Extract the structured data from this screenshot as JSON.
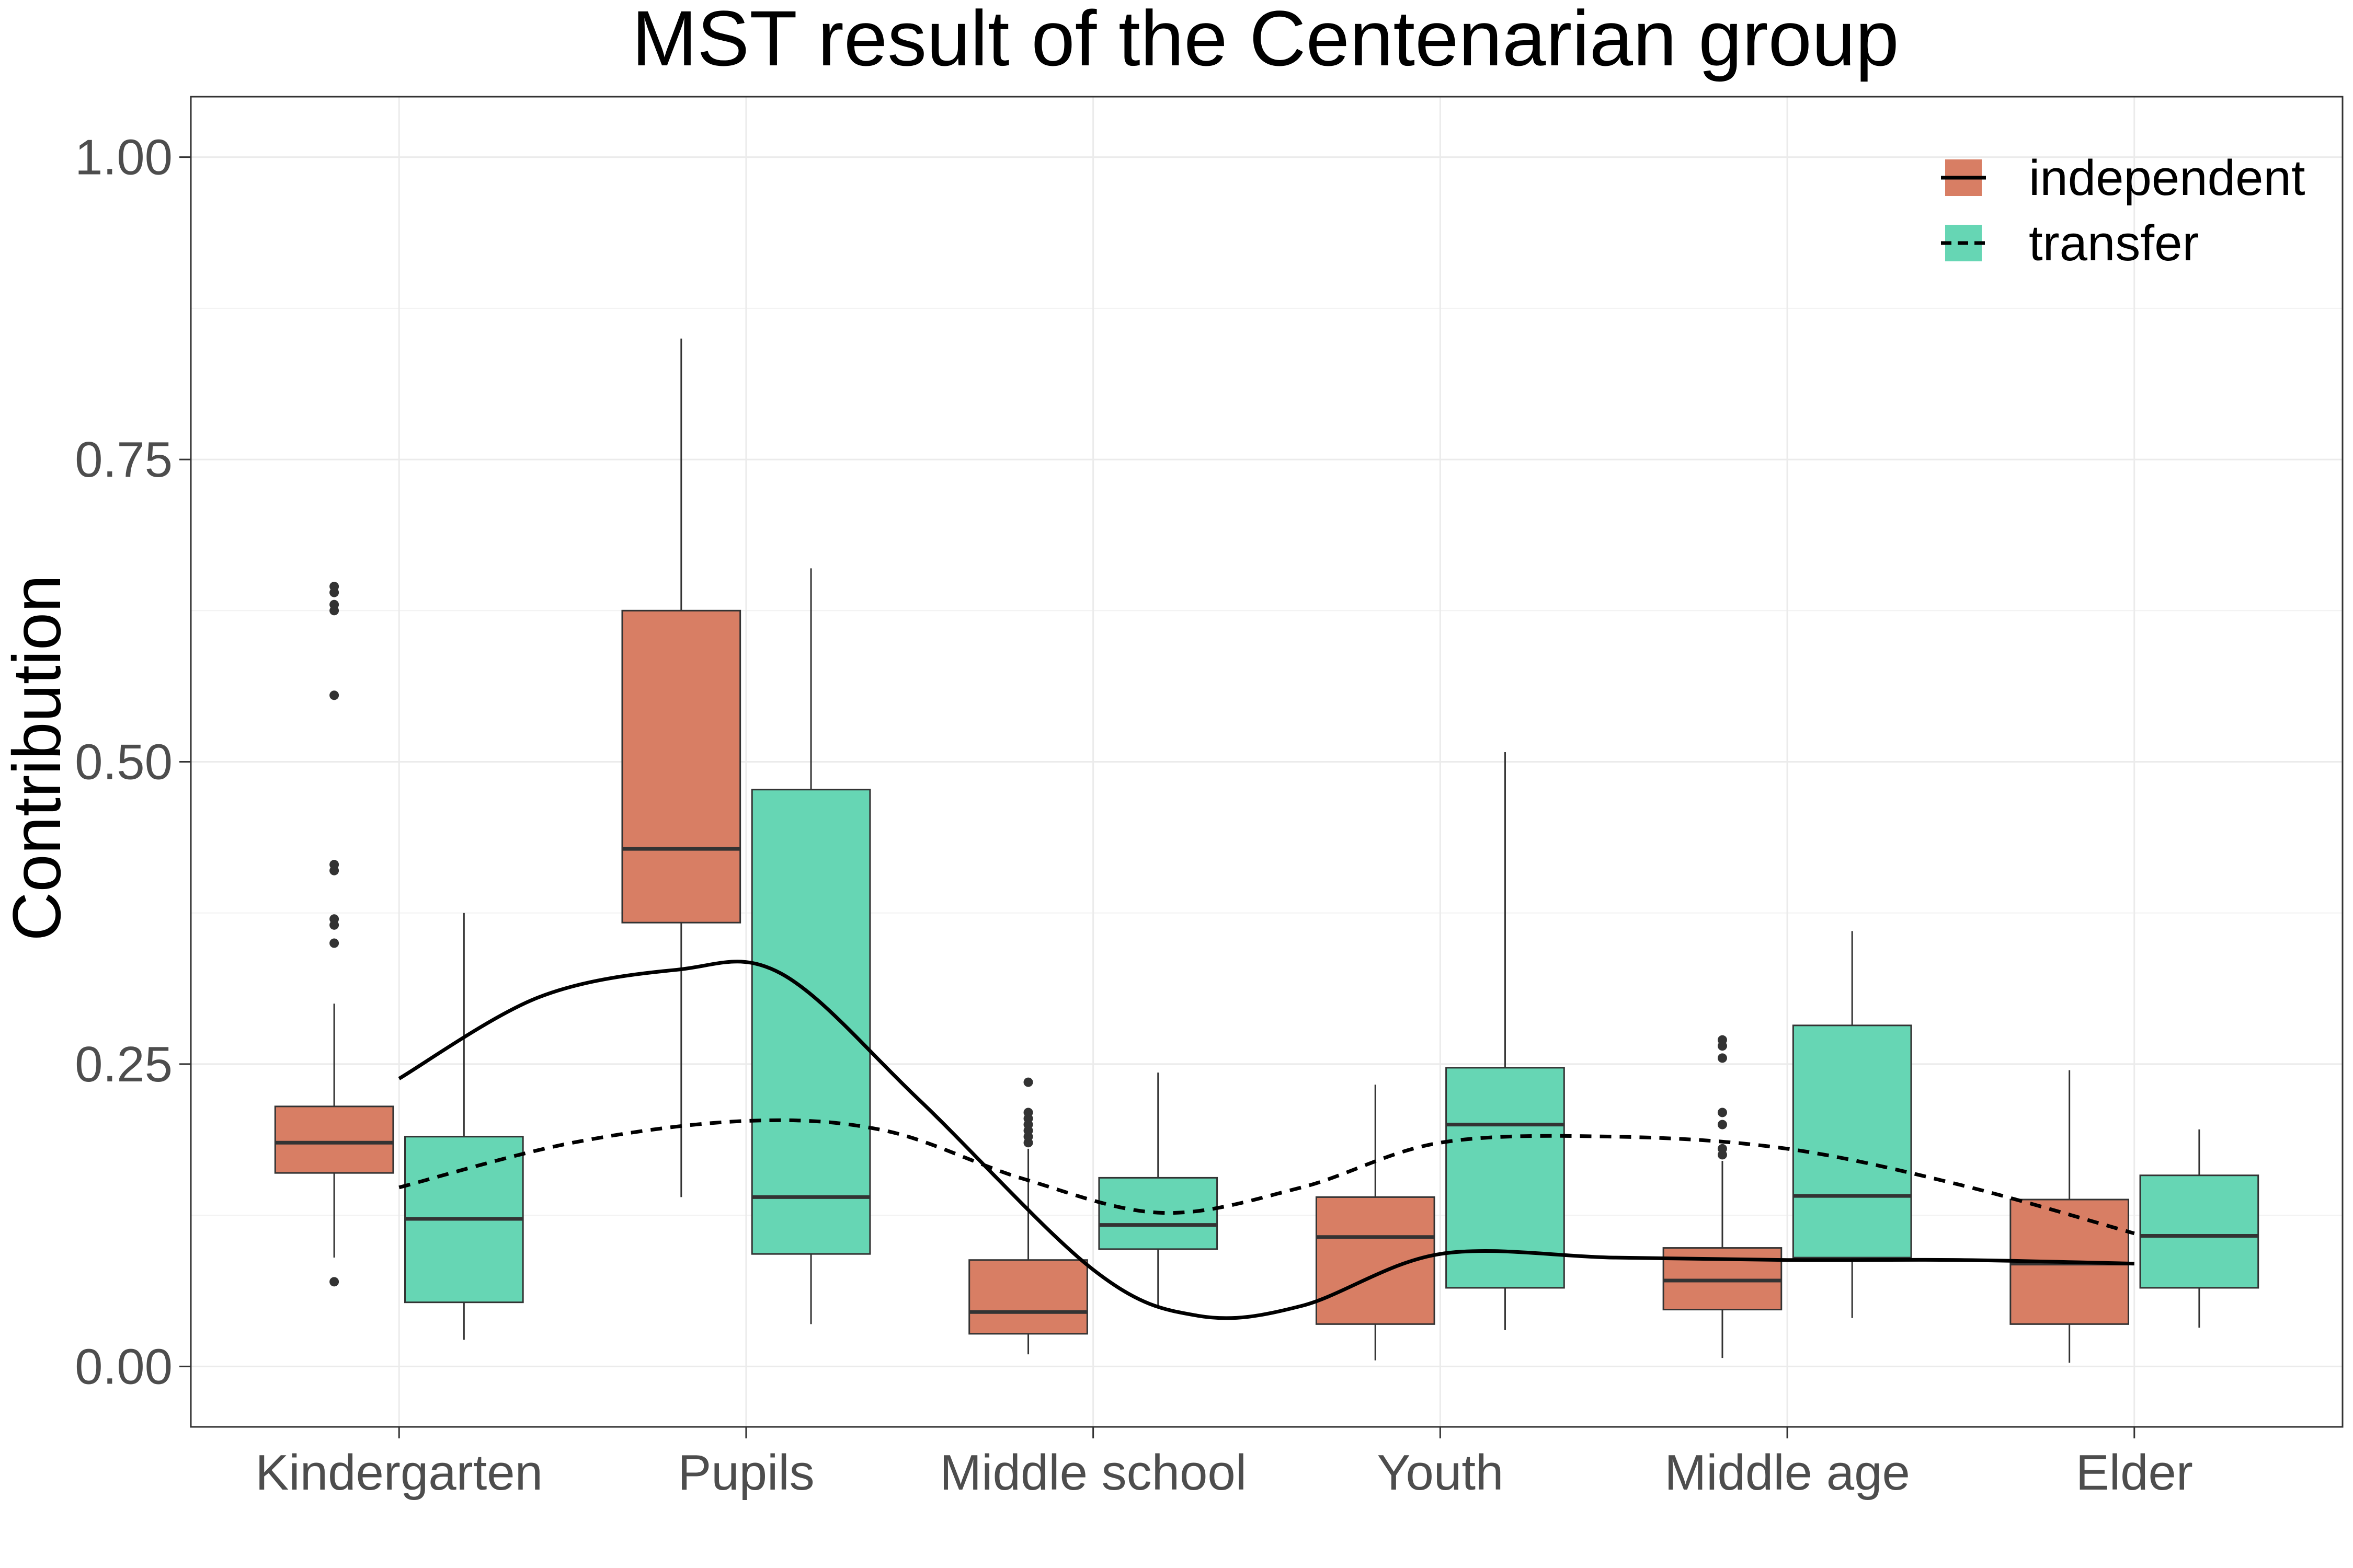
{
  "chart_data": {
    "type": "box",
    "title": "MST result of the Centenarian group",
    "xlabel": "",
    "ylabel": "Contribution",
    "categories": [
      "Kindergarten",
      "Pupils",
      "Middle school",
      "Youth",
      "Middle age",
      "Elder"
    ],
    "ylim": [
      -0.05,
      1.05
    ],
    "yticks": [
      "0.00",
      "0.25",
      "0.50",
      "0.75",
      "1.00"
    ],
    "grid": true,
    "legend_position": "top-right",
    "colors": {
      "independent": "#d87e64",
      "transfer": "#66d6b4",
      "line": "#000000",
      "grid": "#ebebeb"
    },
    "series": [
      {
        "name": "independent",
        "line_style": "solid",
        "boxes": [
          {
            "whisker_low": 0.09,
            "q1": 0.16,
            "median": 0.185,
            "q3": 0.215,
            "whisker_high": 0.3,
            "outliers": [
              0.07,
              0.35,
              0.365,
              0.37,
              0.41,
              0.415,
              0.555,
              0.625,
              0.63,
              0.64,
              0.645
            ]
          },
          {
            "whisker_low": 0.14,
            "q1": 0.367,
            "median": 0.428,
            "q3": 0.625,
            "whisker_high": 0.85,
            "outliers": []
          },
          {
            "whisker_low": 0.01,
            "q1": 0.027,
            "median": 0.045,
            "q3": 0.088,
            "whisker_high": 0.18,
            "outliers": [
              0.185,
              0.19,
              0.195,
              0.2,
              0.205,
              0.21,
              0.235
            ]
          },
          {
            "whisker_low": 0.005,
            "q1": 0.035,
            "median": 0.107,
            "q3": 0.14,
            "whisker_high": 0.233,
            "outliers": []
          },
          {
            "whisker_low": 0.007,
            "q1": 0.047,
            "median": 0.071,
            "q3": 0.098,
            "whisker_high": 0.17,
            "outliers": [
              0.175,
              0.18,
              0.2,
              0.21,
              0.255,
              0.265,
              0.27
            ]
          },
          {
            "whisker_low": 0.003,
            "q1": 0.035,
            "median": 0.085,
            "q3": 0.138,
            "whisker_high": 0.245,
            "outliers": []
          }
        ],
        "trend": [
          [
            1,
            0.238
          ],
          [
            1.4,
            0.305
          ],
          [
            1.8,
            0.328
          ],
          [
            2.1,
            0.325
          ],
          [
            2.5,
            0.22
          ],
          [
            3.0,
            0.08
          ],
          [
            3.3,
            0.042
          ],
          [
            3.6,
            0.05
          ],
          [
            4.0,
            0.093
          ],
          [
            4.5,
            0.09
          ],
          [
            5.0,
            0.088
          ],
          [
            5.5,
            0.088
          ],
          [
            6.0,
            0.085
          ]
        ]
      },
      {
        "name": "transfer",
        "line_style": "dashed",
        "boxes": [
          {
            "whisker_low": 0.022,
            "q1": 0.053,
            "median": 0.122,
            "q3": 0.19,
            "whisker_high": 0.375,
            "outliers": []
          },
          {
            "whisker_low": 0.035,
            "q1": 0.093,
            "median": 0.14,
            "q3": 0.477,
            "whisker_high": 0.66,
            "outliers": []
          },
          {
            "whisker_low": 0.048,
            "q1": 0.097,
            "median": 0.117,
            "q3": 0.156,
            "whisker_high": 0.243,
            "outliers": []
          },
          {
            "whisker_low": 0.03,
            "q1": 0.065,
            "median": 0.2,
            "q3": 0.247,
            "whisker_high": 0.508,
            "outliers": []
          },
          {
            "whisker_low": 0.04,
            "q1": 0.09,
            "median": 0.141,
            "q3": 0.282,
            "whisker_high": 0.36,
            "outliers": []
          },
          {
            "whisker_low": 0.032,
            "q1": 0.065,
            "median": 0.108,
            "q3": 0.158,
            "whisker_high": 0.196,
            "outliers": []
          }
        ],
        "trend": [
          [
            1,
            0.148
          ],
          [
            1.5,
            0.185
          ],
          [
            2.0,
            0.203
          ],
          [
            2.4,
            0.195
          ],
          [
            2.8,
            0.155
          ],
          [
            3.2,
            0.127
          ],
          [
            3.6,
            0.148
          ],
          [
            4.0,
            0.185
          ],
          [
            4.5,
            0.19
          ],
          [
            5.0,
            0.18
          ],
          [
            5.5,
            0.15
          ],
          [
            6.0,
            0.11
          ]
        ]
      }
    ]
  }
}
